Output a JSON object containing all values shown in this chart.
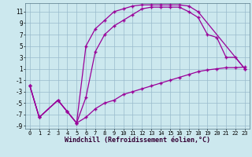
{
  "xlabel": "Windchill (Refroidissement éolien,°C)",
  "bg_color": "#cce8ee",
  "line_color": "#990099",
  "grid_color": "#99bbcc",
  "xlim": [
    -0.5,
    23.5
  ],
  "ylim": [
    -9.5,
    12.5
  ],
  "xticks": [
    0,
    1,
    2,
    3,
    4,
    5,
    6,
    7,
    8,
    9,
    10,
    11,
    12,
    13,
    14,
    15,
    16,
    17,
    18,
    19,
    20,
    21,
    22,
    23
  ],
  "yticks": [
    -9,
    -7,
    -5,
    -3,
    -1,
    1,
    3,
    5,
    7,
    9,
    11
  ],
  "curve1_x": [
    0,
    1,
    3,
    4,
    5,
    6,
    7,
    8,
    9,
    10,
    11,
    12,
    13,
    14,
    15,
    16,
    17,
    18,
    23
  ],
  "curve1_y": [
    -2,
    -7.5,
    -4.5,
    -6.5,
    -8.5,
    5,
    8,
    9.5,
    11,
    11.5,
    12,
    12.2,
    12.2,
    12.2,
    12.2,
    12.2,
    12,
    11,
    1
  ],
  "curve2_x": [
    0,
    1,
    3,
    4,
    5,
    6,
    7,
    8,
    9,
    10,
    11,
    12,
    13,
    14,
    15,
    16,
    17,
    18,
    19,
    20,
    21,
    22,
    23
  ],
  "curve2_y": [
    -2,
    -7.5,
    -4.5,
    -6.5,
    -8.5,
    -7.5,
    -6,
    -5,
    -4.5,
    -3.5,
    -3,
    -2.5,
    -2,
    -1.5,
    -1,
    -0.5,
    0,
    0.5,
    0.8,
    1,
    1.2,
    1.2,
    1.3
  ],
  "curve3_x": [
    0,
    1,
    3,
    4,
    5,
    6,
    7,
    8,
    9,
    10,
    11,
    12,
    13,
    14,
    15,
    16,
    17,
    18,
    19,
    20,
    21,
    22,
    23
  ],
  "curve3_y": [
    -2,
    -7.5,
    -4.5,
    -6.5,
    -8.5,
    -4,
    4,
    7,
    8.5,
    9.5,
    10.5,
    11.5,
    11.8,
    11.8,
    11.8,
    11.8,
    11,
    10,
    7,
    6.5,
    3,
    3,
    1
  ]
}
